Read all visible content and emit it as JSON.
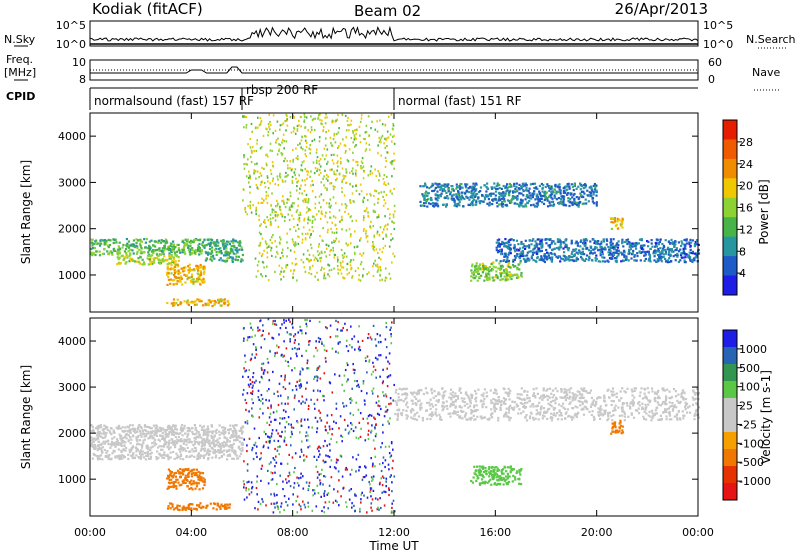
{
  "header": {
    "station": "Kodiak (fitACF)",
    "beam": "Beam 02",
    "date": "26/Apr/2013"
  },
  "strip": {
    "nsky_label": "N.Sky",
    "nsky_ticks": [
      "10^5",
      "10^0"
    ],
    "nsearch_label": "N.Search",
    "nsearch_ticks": [
      "10^5",
      "10^0"
    ],
    "freq_label_line1": "Freq.",
    "freq_label_line2": "[MHz]",
    "freq_ticks": [
      "10",
      "8"
    ],
    "nave_label": "Nave",
    "nave_ticks": [
      "60",
      "0"
    ],
    "cpid_label": "CPID",
    "cpid_segments": [
      {
        "start": 0,
        "end": 6,
        "label": "normalsound (fast) 157 RF"
      },
      {
        "start": 6,
        "end": 12,
        "label": "rbsp 200 RF"
      },
      {
        "start": 12,
        "end": 24,
        "label": "normal (fast) 151 RF"
      }
    ]
  },
  "colors": {
    "power_scale": [
      "#1e1ee6",
      "#1e5ac8",
      "#2896a0",
      "#46b446",
      "#8cd232",
      "#f0c800",
      "#f08c00",
      "#f05a00",
      "#e61e00"
    ],
    "velocity_scale": [
      "#1e1ee6",
      "#2864b4",
      "#329650",
      "#5ac846",
      "#c8c8c8",
      "#c8c8c8",
      "#f5a000",
      "#f07800",
      "#e63200",
      "#e61414"
    ],
    "ground_scatter": "#c8c8c8"
  },
  "chart_data": [
    {
      "type": "heatmap",
      "title": "",
      "xlabel": "Time UT",
      "ylabel": "Slant Range [km]",
      "xlim": [
        0,
        24
      ],
      "ylim": [
        200,
        4500
      ],
      "x_tick_values": [
        0,
        4,
        8,
        12,
        16,
        20,
        24
      ],
      "x_tick_labels": [
        "00:00",
        "04:00",
        "08:00",
        "12:00",
        "16:00",
        "20:00",
        "00:00"
      ],
      "y_tick_values": [
        1000,
        2000,
        3000,
        4000
      ],
      "y_tick_labels": [
        "1000",
        "2000",
        "3000",
        "4000"
      ],
      "colorbar": {
        "label": "Power [dB]",
        "ticks": [
          "4",
          "8",
          "12",
          "16",
          "20",
          "24",
          "28"
        ],
        "range": [
          0,
          30
        ]
      },
      "regions": [
        {
          "t0": 0.0,
          "t1": 4.5,
          "r0": 1450,
          "r1": 1800,
          "value": 12
        },
        {
          "t0": 1.0,
          "t1": 3.5,
          "r0": 1250,
          "r1": 1450,
          "value": 16
        },
        {
          "t0": 3.0,
          "t1": 4.5,
          "r0": 800,
          "r1": 1250,
          "value": 20
        },
        {
          "t0": 3.0,
          "t1": 5.5,
          "r0": 350,
          "r1": 500,
          "value": 20
        },
        {
          "t0": 4.5,
          "t1": 6.0,
          "r0": 1300,
          "r1": 1800,
          "value": 10
        },
        {
          "t0": 6.5,
          "t1": 12.0,
          "r0": 900,
          "r1": 2300,
          "value": 16
        },
        {
          "t0": 6.0,
          "t1": 12.0,
          "r0": 2300,
          "r1": 4500,
          "value": 16
        },
        {
          "t0": 15.0,
          "t1": 17.0,
          "r0": 900,
          "r1": 1300,
          "value": 14
        },
        {
          "t0": 13.0,
          "t1": 20.0,
          "r0": 2500,
          "r1": 3000,
          "value": 6
        },
        {
          "t0": 16.0,
          "t1": 24.0,
          "r0": 1300,
          "r1": 1800,
          "value": 5
        },
        {
          "t0": 20.5,
          "t1": 21.0,
          "r0": 2000,
          "r1": 2300,
          "value": 20
        }
      ]
    },
    {
      "type": "heatmap",
      "title": "",
      "xlabel": "Time UT",
      "ylabel": "Slant Range [km]",
      "xlim": [
        0,
        24
      ],
      "ylim": [
        200,
        4500
      ],
      "x_tick_values": [
        0,
        4,
        8,
        12,
        16,
        20,
        24
      ],
      "x_tick_labels": [
        "00:00",
        "04:00",
        "08:00",
        "12:00",
        "16:00",
        "20:00",
        "00:00"
      ],
      "y_tick_values": [
        1000,
        2000,
        3000,
        4000
      ],
      "y_tick_labels": [
        "1000",
        "2000",
        "3000",
        "4000"
      ],
      "colorbar": {
        "label": "Velocity [m s-1]",
        "ticks": [
          "1000",
          "500",
          "100",
          "25",
          "-25",
          "-100",
          "-500",
          "-1000"
        ]
      },
      "regions": [
        {
          "t0": 0.0,
          "t1": 6.0,
          "r0": 1450,
          "r1": 2200,
          "value": "ground"
        },
        {
          "t0": 3.0,
          "t1": 4.5,
          "r0": 800,
          "r1": 1250,
          "value": -300
        },
        {
          "t0": 3.0,
          "t1": 5.5,
          "r0": 350,
          "r1": 500,
          "value": -300
        },
        {
          "t0": 6.0,
          "t1": 12.0,
          "r0": 300,
          "r1": 4500,
          "value": "mixed"
        },
        {
          "t0": 12.0,
          "t1": 24.0,
          "r0": 2300,
          "r1": 3000,
          "value": "ground"
        },
        {
          "t0": 15.0,
          "t1": 17.0,
          "r0": 900,
          "r1": 1300,
          "value": 100
        },
        {
          "t0": 20.5,
          "t1": 21.0,
          "r0": 2000,
          "r1": 2300,
          "value": -300
        }
      ]
    }
  ]
}
